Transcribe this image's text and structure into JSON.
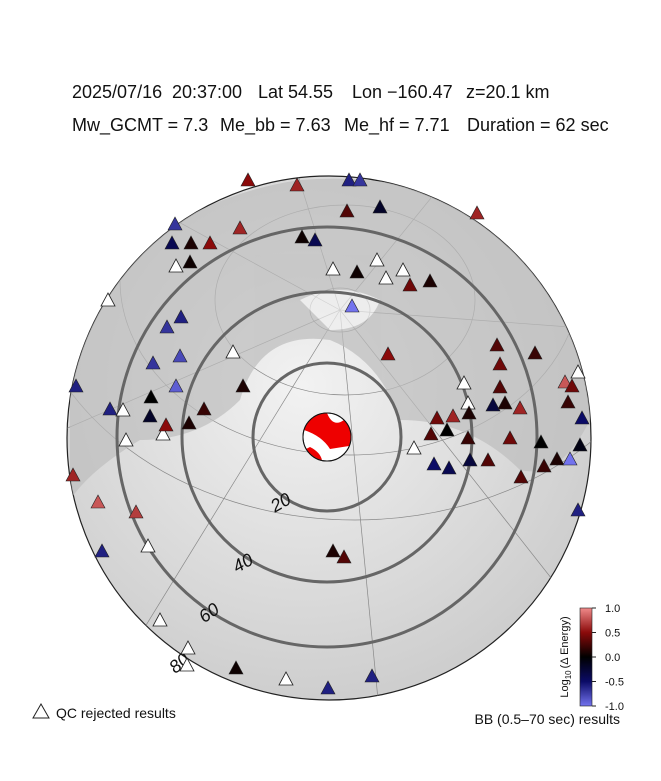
{
  "header": {
    "date": "2025/07/16",
    "time": "20:37:00",
    "lat": "Lat 54.55",
    "lon": "Lon −160.47",
    "depth": "z=20.1 km",
    "mw": "Mw_GCMT = 7.3",
    "me_bb": "Me_bb = 7.63",
    "me_hf": "Me_hf = 7.71",
    "duration": "Duration = 62 sec"
  },
  "rings": [
    "20",
    "40",
    "60",
    "80"
  ],
  "colorbar": {
    "label_base": "Log",
    "label_sub": "10",
    "label_rest": "(Δ Energy)",
    "lim": [
      -1,
      1
    ],
    "colors": [
      "#7373ee",
      "#0b0b66",
      "#000000",
      "#8b0a0a",
      "#f08a8a"
    ],
    "ticks": [
      {
        "value": 1,
        "label": "1.0"
      },
      {
        "value": 0.5,
        "label": "0.5"
      },
      {
        "value": 0,
        "label": "0.0"
      },
      {
        "value": -0.5,
        "label": "-0.5"
      },
      {
        "value": -1,
        "label": "-1.0"
      }
    ]
  },
  "legend": {
    "rejected": "QC rejected results",
    "bb": "BB (0.5–70 sec) results"
  },
  "stations": {
    "values": [
      0.5,
      0.6,
      -0.6,
      -0.7,
      0.3,
      -0.2,
      0.6,
      -0.7,
      -0.4,
      0.1,
      0.5,
      0.6,
      0.05,
      -0.4,
      0.05,
      0.05,
      0.4,
      0.1,
      -0.7,
      -0.6,
      -0.7,
      -0.8,
      -1.0,
      0.5,
      0.3,
      0.2,
      0.4,
      -0.6,
      0.0,
      -0.9,
      -0.6,
      -0.2,
      0.2,
      0.1,
      0.5,
      0.1,
      0.8,
      0.4,
      0.2,
      0.3,
      -0.3,
      0.1,
      0.6,
      0.4,
      0.6,
      0.1,
      0.3,
      0.0,
      0.2,
      -0.5,
      -0.4,
      -0.3,
      0.3,
      0.4,
      0.0,
      0.1,
      -1.0,
      -0.1,
      -0.5,
      0.3,
      0.2,
      0.6,
      0.8,
      0.7,
      -0.6,
      0.1,
      0.3,
      -0.6,
      0.05,
      -0.6,
      -0.6
    ]
  }
}
